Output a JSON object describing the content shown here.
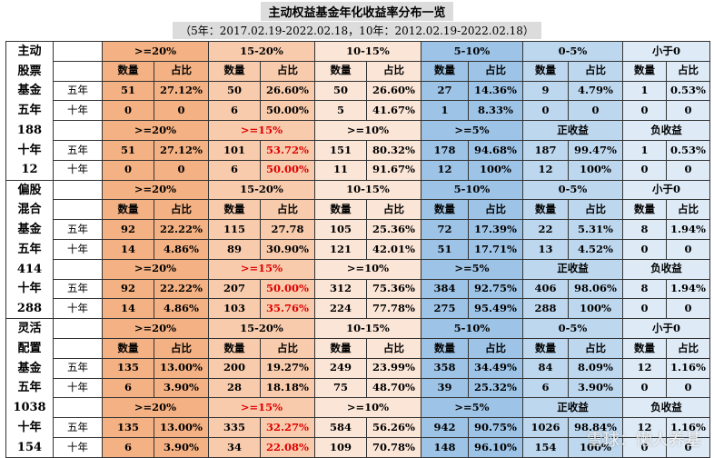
{
  "title": "主动权益基金年化收益率分布一览",
  "subtitle": "（5年：2017.02.19-2022.02.18，10年：2012.02.19-2022.02.18）",
  "watermark": "雪球：懒人养基",
  "sides": [
    [
      "主动",
      "股票",
      "基金",
      "五年",
      "188",
      "十年",
      "12"
    ],
    [
      "偏股",
      "混合",
      "基金",
      "五年",
      "414",
      "十年",
      "288"
    ],
    [
      "灵活",
      "配置",
      "基金",
      "五年",
      "1038",
      "十年",
      "154"
    ]
  ],
  "rows": [
    {
      "t": "h",
      "cells": [
        ">=20%",
        "15-20%",
        "10-15%",
        "5-10%",
        "0-5%",
        "小于0"
      ]
    },
    {
      "t": "s",
      "cells": [
        "数量",
        "占比",
        "数量",
        "占比",
        "数量",
        "占比",
        "数量",
        "占比",
        "数量",
        "占比",
        "数量",
        "占比"
      ]
    },
    {
      "t": "d",
      "label": "五年",
      "cells": [
        "51",
        "27.12%",
        "50",
        "26.60%",
        "50",
        "26.60%",
        "27",
        "14.36%",
        "9",
        "4.79%",
        "1",
        "0.53%"
      ]
    },
    {
      "t": "d",
      "label": "十年",
      "cells": [
        "0",
        "0",
        "6",
        "50.00%",
        "5",
        "41.67%",
        "1",
        "8.33%",
        "0",
        "0",
        "0",
        "0"
      ]
    },
    {
      "t": "h",
      "cells": [
        ">=20%",
        ">=15%",
        ">=10%",
        ">=5%",
        "正收益",
        "负收益"
      ]
    },
    {
      "t": "d",
      "label": "五年",
      "cells": [
        "51",
        "27.12%",
        "101",
        "53.72%",
        "151",
        "80.32%",
        "178",
        "94.68%",
        "187",
        "99.47%",
        "1",
        "0.53%"
      ]
    },
    {
      "t": "d",
      "label": "十年",
      "cells": [
        "0",
        "0",
        "6",
        "50.00%",
        "11",
        "91.67%",
        "12",
        "100%",
        "12",
        "100%",
        "0",
        "0"
      ]
    },
    {
      "t": "h",
      "cells": [
        ">=20%",
        "15-20%",
        "10-15%",
        "5-10%",
        "0-5%",
        "小于0"
      ]
    },
    {
      "t": "s",
      "cells": [
        "数量",
        "占比",
        "数量",
        "占比",
        "数量",
        "占比",
        "数量",
        "占比",
        "数量",
        "占比",
        "数量",
        "占比"
      ]
    },
    {
      "t": "d",
      "label": "五年",
      "cells": [
        "92",
        "22.22%",
        "115",
        "27.78",
        "105",
        "25.36%",
        "72",
        "17.39%",
        "22",
        "5.31%",
        "8",
        "1.94%"
      ]
    },
    {
      "t": "d",
      "label": "十年",
      "cells": [
        "14",
        "4.86%",
        "89",
        "30.90%",
        "121",
        "42.01%",
        "51",
        "17.71%",
        "13",
        "4.52%",
        "0",
        "0"
      ]
    },
    {
      "t": "h",
      "cells": [
        ">=20%",
        ">=15%",
        ">=10%",
        ">=5%",
        "正收益",
        "负收益"
      ]
    },
    {
      "t": "d",
      "label": "五年",
      "cells": [
        "92",
        "22.22%",
        "207",
        "50.00%",
        "312",
        "75.36%",
        "384",
        "92.75%",
        "406",
        "98.06%",
        "8",
        "1.94%"
      ]
    },
    {
      "t": "d",
      "label": "十年",
      "cells": [
        "14",
        "4.86%",
        "103",
        "35.76%",
        "224",
        "77.78%",
        "275",
        "95.49%",
        "288",
        "100%",
        "0",
        "0"
      ]
    },
    {
      "t": "h",
      "cells": [
        ">=20%",
        "15-20%",
        "10-15%",
        "5-10%",
        "0-5%",
        "小于0"
      ]
    },
    {
      "t": "s",
      "cells": [
        "数量",
        "占比",
        "数量",
        "占比",
        "数量",
        "占比",
        "数量",
        "占比",
        "数量",
        "占比",
        "数量",
        "占比"
      ]
    },
    {
      "t": "d",
      "label": "五年",
      "cells": [
        "135",
        "13.00%",
        "200",
        "19.27%",
        "249",
        "23.99%",
        "358",
        "34.49%",
        "84",
        "8.09%",
        "12",
        "1.16%"
      ]
    },
    {
      "t": "d",
      "label": "十年",
      "cells": [
        "6",
        "3.90%",
        "28",
        "18.18%",
        "75",
        "48.70%",
        "39",
        "25.32%",
        "6",
        "3.90%",
        "0",
        "0"
      ]
    },
    {
      "t": "h",
      "cells": [
        ">=20%",
        ">=15%",
        ">=10%",
        ">=5%",
        "正收益",
        "负收益"
      ]
    },
    {
      "t": "d",
      "label": "五年",
      "cells": [
        "135",
        "13.00%",
        "335",
        "32.27%",
        "584",
        "56.26%",
        "942",
        "90.75%",
        "1026",
        "98.84%",
        "12",
        "1.16%"
      ]
    },
    {
      "t": "d",
      "label": "十年",
      "cells": [
        "6",
        "3.90%",
        "34",
        "22.08%",
        "109",
        "70.78%",
        "148",
        "96.10%",
        "154",
        "100%",
        "0",
        "0"
      ]
    }
  ],
  "colors": {
    "c1": "#f4b183",
    "c2": "#f8cbad",
    "c3": "#fbe5d6",
    "c4": "#9dc3e6",
    "c5": "#bdd7ee",
    "c6": "#deebf7",
    "highlight_text": "#e00000"
  }
}
